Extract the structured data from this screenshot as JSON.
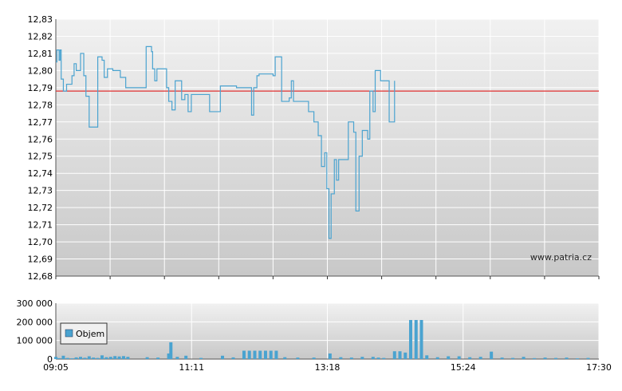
{
  "watermark": "www.patria.cz",
  "colors": {
    "line": "#4aa3d0",
    "reference": "#e03030",
    "bar": "#4aa3d0",
    "grid": "#ffffff",
    "bg_top": "#efefef",
    "bg_bottom": "#c8c8c8"
  },
  "chart_data": [
    {
      "type": "line",
      "title": "",
      "xlabel": "",
      "ylabel": "",
      "ylim": [
        12.68,
        12.83
      ],
      "y_ticks": [
        "12,83",
        "12,82",
        "12,81",
        "12,80",
        "12,79",
        "12,78",
        "12,77",
        "12,76",
        "12,75",
        "12,74",
        "12,73",
        "12,72",
        "12,71",
        "12,70",
        "12,69",
        "12,68"
      ],
      "reference_line": 12.788,
      "grid": true,
      "series": [
        {
          "points": [
            [
              "09:05",
              12.805
            ],
            [
              "09:06",
              12.812
            ],
            [
              "09:08",
              12.806
            ],
            [
              "09:09",
              12.812
            ],
            [
              "09:10",
              12.795
            ],
            [
              "09:12",
              12.788
            ],
            [
              "09:15",
              12.792
            ],
            [
              "09:20",
              12.797
            ],
            [
              "09:22",
              12.804
            ],
            [
              "09:24",
              12.8
            ],
            [
              "09:28",
              12.81
            ],
            [
              "09:31",
              12.797
            ],
            [
              "09:33",
              12.785
            ],
            [
              "09:36",
              12.767
            ],
            [
              "09:43",
              12.767
            ],
            [
              "09:44",
              12.808
            ],
            [
              "09:48",
              12.806
            ],
            [
              "09:50",
              12.796
            ],
            [
              "09:53",
              12.801
            ],
            [
              "09:58",
              12.8
            ],
            [
              "10:05",
              12.796
            ],
            [
              "10:10",
              12.79
            ],
            [
              "10:28",
              12.79
            ],
            [
              "10:29",
              12.814
            ],
            [
              "10:32",
              12.814
            ],
            [
              "10:34",
              12.811
            ],
            [
              "10:35",
              12.801
            ],
            [
              "10:37",
              12.794
            ],
            [
              "10:39",
              12.801
            ],
            [
              "10:48",
              12.79
            ],
            [
              "10:50",
              12.782
            ],
            [
              "10:53",
              12.777
            ],
            [
              "10:56",
              12.794
            ],
            [
              "11:02",
              12.783
            ],
            [
              "11:05",
              12.786
            ],
            [
              "11:08",
              12.776
            ],
            [
              "11:11",
              12.786
            ],
            [
              "11:25",
              12.786
            ],
            [
              "11:28",
              12.776
            ],
            [
              "11:34",
              12.776
            ],
            [
              "11:38",
              12.791
            ],
            [
              "11:45",
              12.791
            ],
            [
              "11:53",
              12.79
            ],
            [
              "12:05",
              12.79
            ],
            [
              "12:07",
              12.774
            ],
            [
              "12:09",
              12.79
            ],
            [
              "12:12",
              12.797
            ],
            [
              "12:14",
              12.798
            ],
            [
              "12:20",
              12.798
            ],
            [
              "12:27",
              12.797
            ],
            [
              "12:29",
              12.808
            ],
            [
              "12:32",
              12.808
            ],
            [
              "12:35",
              12.782
            ],
            [
              "12:42",
              12.784
            ],
            [
              "12:44",
              12.794
            ],
            [
              "12:46",
              12.782
            ],
            [
              "12:48",
              12.782
            ],
            [
              "13:00",
              12.776
            ],
            [
              "13:05",
              12.77
            ],
            [
              "13:09",
              12.762
            ],
            [
              "13:12",
              12.744
            ],
            [
              "13:15",
              12.752
            ],
            [
              "13:17",
              12.731
            ],
            [
              "13:19",
              12.702
            ],
            [
              "13:21",
              12.728
            ],
            [
              "13:24",
              12.748
            ],
            [
              "13:26",
              12.736
            ],
            [
              "13:28",
              12.748
            ],
            [
              "13:35",
              12.748
            ],
            [
              "13:37",
              12.77
            ],
            [
              "13:42",
              12.764
            ],
            [
              "13:44",
              12.718
            ],
            [
              "13:47",
              12.75
            ],
            [
              "13:50",
              12.765
            ],
            [
              "13:55",
              12.76
            ],
            [
              "13:57",
              12.788
            ],
            [
              "14:00",
              12.776
            ],
            [
              "14:02",
              12.8
            ],
            [
              "14:05",
              12.8
            ],
            [
              "14:07",
              12.794
            ],
            [
              "14:12",
              12.794
            ],
            [
              "14:15",
              12.77
            ],
            [
              "14:18",
              12.77
            ],
            [
              "14:20",
              12.794
            ]
          ]
        }
      ]
    },
    {
      "type": "bar",
      "title": "",
      "xlabel": "",
      "ylabel": "",
      "ylim": [
        0,
        300000
      ],
      "y_ticks": [
        "300 000",
        "200 000",
        "100 000",
        "0"
      ],
      "x_ticks": [
        "09:05",
        "11:11",
        "13:18",
        "15:24",
        "17:30"
      ],
      "legend": {
        "label": "Objem",
        "placement": "left"
      },
      "grid": true,
      "series": [
        {
          "name": "Objem",
          "values": [
            [
              "09:05",
              12000
            ],
            [
              "09:08",
              5000
            ],
            [
              "09:12",
              18000
            ],
            [
              "09:16",
              6000
            ],
            [
              "09:20",
              4000
            ],
            [
              "09:24",
              9000
            ],
            [
              "09:28",
              12000
            ],
            [
              "09:32",
              7000
            ],
            [
              "09:36",
              15000
            ],
            [
              "09:40",
              8000
            ],
            [
              "09:44",
              6000
            ],
            [
              "09:48",
              20000
            ],
            [
              "09:52",
              10000
            ],
            [
              "09:56",
              12000
            ],
            [
              "10:00",
              16000
            ],
            [
              "10:04",
              14000
            ],
            [
              "10:08",
              16000
            ],
            [
              "10:12",
              12000
            ],
            [
              "10:30",
              10000
            ],
            [
              "10:40",
              8000
            ],
            [
              "10:50",
              30000
            ],
            [
              "10:52",
              90000
            ],
            [
              "10:58",
              12000
            ],
            [
              "11:06",
              18000
            ],
            [
              "11:20",
              6000
            ],
            [
              "11:40",
              18000
            ],
            [
              "11:50",
              9000
            ],
            [
              "12:00",
              45000
            ],
            [
              "12:05",
              45000
            ],
            [
              "12:10",
              45000
            ],
            [
              "12:15",
              45000
            ],
            [
              "12:20",
              45000
            ],
            [
              "12:25",
              45000
            ],
            [
              "12:30",
              45000
            ],
            [
              "12:38",
              10000
            ],
            [
              "12:50",
              8000
            ],
            [
              "13:05",
              8000
            ],
            [
              "13:20",
              30000
            ],
            [
              "13:30",
              10000
            ],
            [
              "13:40",
              8000
            ],
            [
              "13:50",
              12000
            ],
            [
              "14:00",
              12000
            ],
            [
              "14:05",
              8000
            ],
            [
              "14:10",
              6000
            ],
            [
              "14:20",
              42000
            ],
            [
              "14:25",
              42000
            ],
            [
              "14:30",
              35000
            ],
            [
              "14:35",
              210000
            ],
            [
              "14:40",
              210000
            ],
            [
              "14:45",
              210000
            ],
            [
              "14:50",
              20000
            ],
            [
              "15:00",
              10000
            ],
            [
              "15:10",
              15000
            ],
            [
              "15:20",
              15000
            ],
            [
              "15:30",
              10000
            ],
            [
              "15:40",
              12000
            ],
            [
              "15:50",
              40000
            ],
            [
              "16:00",
              8000
            ],
            [
              "16:10",
              6000
            ],
            [
              "16:20",
              12000
            ],
            [
              "16:30",
              5000
            ],
            [
              "16:40",
              8000
            ],
            [
              "16:50",
              6000
            ],
            [
              "17:00",
              8000
            ],
            [
              "17:10",
              4000
            ],
            [
              "17:20",
              6000
            ]
          ]
        }
      ]
    }
  ]
}
